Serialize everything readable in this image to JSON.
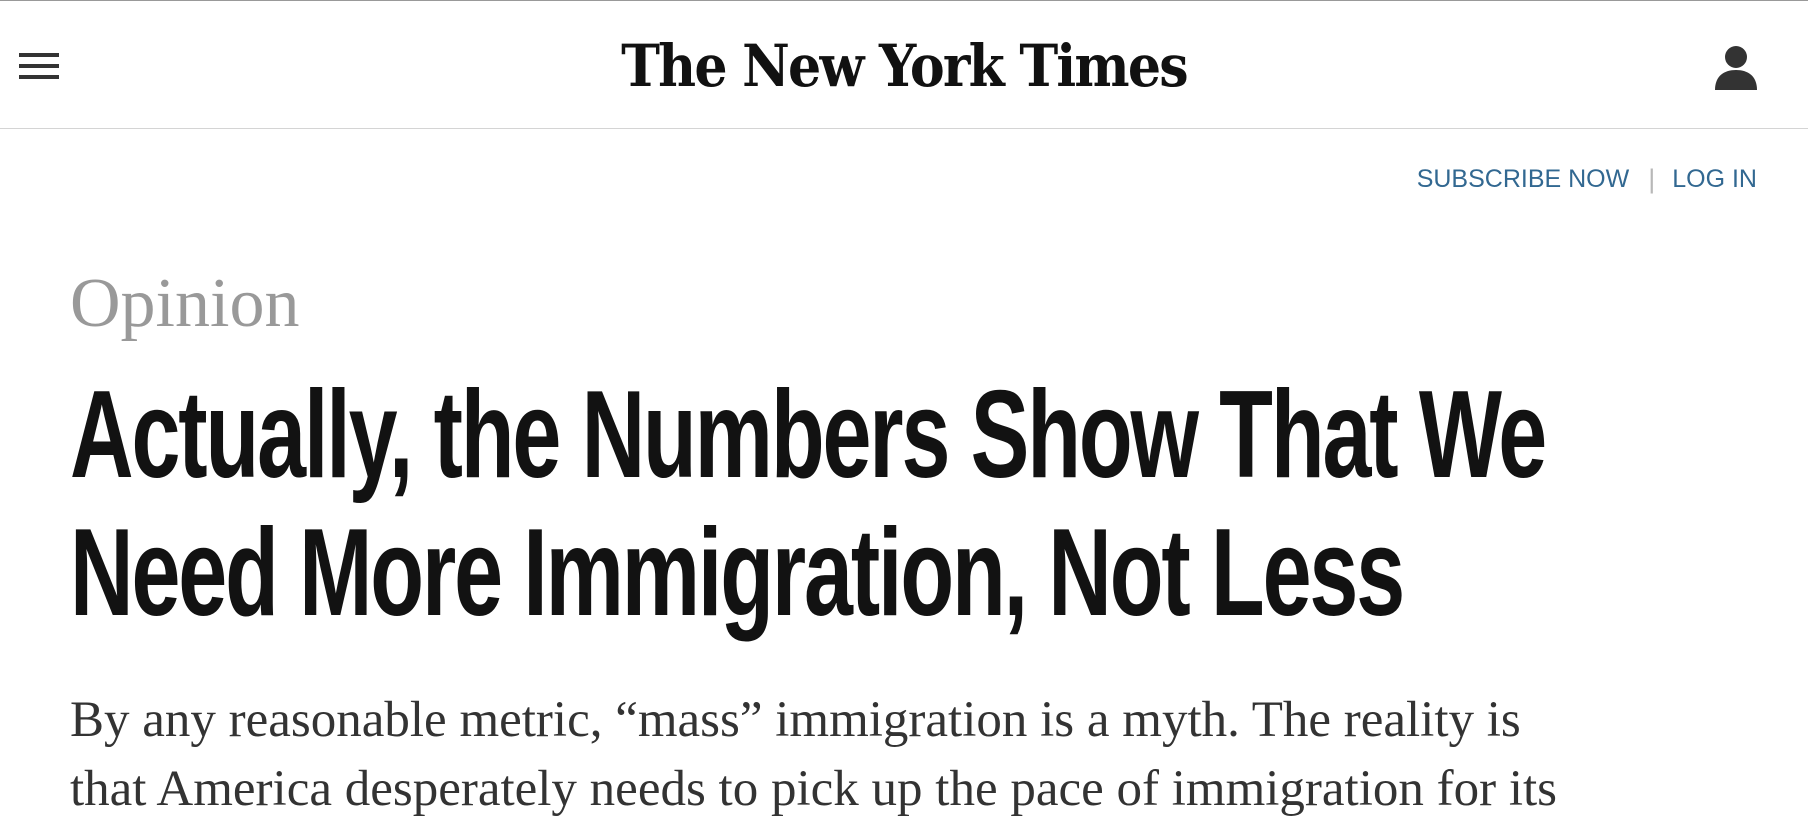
{
  "header": {
    "menu_icon": "hamburger-menu-icon",
    "logo_text": "The New York Times",
    "account_icon": "user-account-icon"
  },
  "auth": {
    "subscribe_label": "SUBSCRIBE NOW",
    "separator": "|",
    "login_label": "LOG IN"
  },
  "article": {
    "section": "Opinion",
    "headline_lines": [
      "Actually, the Numbers Show That We",
      "Need More Immigration, Not Less"
    ],
    "summary_lines": [
      "By any reasonable metric, “mass” immigration is a myth. The reality is",
      "that America desperately needs to pick up the pace of immigration for its"
    ]
  },
  "colors": {
    "link_blue": "#326891",
    "section_gray": "#999999",
    "headline_black": "#121212",
    "summary_text": "#333333",
    "divider": "#d4d4d4"
  }
}
